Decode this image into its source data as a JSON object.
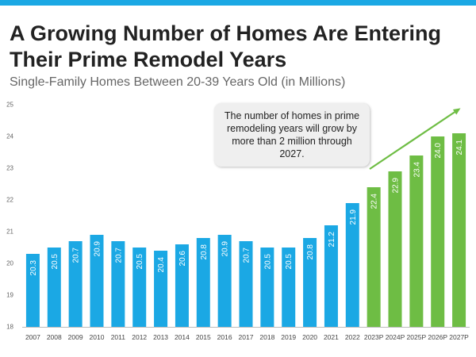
{
  "header": {
    "title": "A Growing Number of Homes Are Entering Their Prime Remodel Years",
    "subtitle": "Single-Family Homes Between 20-39 Years Old (in Millions)"
  },
  "callout": {
    "text": "The number of homes in prime remodeling years will grow by more than 2 million through 2027."
  },
  "colors": {
    "actual": "#1ba8e4",
    "projected": "#6ebd44",
    "accent_bar": "#1ba8e4",
    "arrow": "#6ebd44"
  },
  "chart_data": {
    "type": "bar",
    "title": "A Growing Number of Homes Are Entering Their Prime Remodel Years",
    "subtitle": "Single-Family Homes Between 20-39 Years Old (in Millions)",
    "xlabel": "",
    "ylabel": "",
    "ylim": [
      18,
      25
    ],
    "yticks": [
      18,
      19,
      20,
      21,
      22,
      23,
      24,
      25
    ],
    "grid": false,
    "legend": "none",
    "categories": [
      "2007",
      "2008",
      "2009",
      "2010",
      "2011",
      "2012",
      "2013",
      "2014",
      "2015",
      "2016",
      "2017",
      "2018",
      "2019",
      "2020",
      "2021",
      "2022",
      "2023P",
      "2024P",
      "2025P",
      "2026P",
      "2027P"
    ],
    "values": [
      20.3,
      20.5,
      20.7,
      20.9,
      20.7,
      20.5,
      20.4,
      20.6,
      20.8,
      20.9,
      20.7,
      20.5,
      20.5,
      20.8,
      21.2,
      21.9,
      22.4,
      22.9,
      23.4,
      24.0,
      24.1
    ],
    "labels": [
      "20.3",
      "20.5",
      "20.7",
      "20.9",
      "20.7",
      "20.5",
      "20.4",
      "20.6",
      "20.8",
      "20.9",
      "20.7",
      "20.5",
      "20.5",
      "20.8",
      "21.2",
      "21.9",
      "22.4",
      "22.9",
      "23.4",
      "24.0",
      "24.1"
    ],
    "projected": [
      false,
      false,
      false,
      false,
      false,
      false,
      false,
      false,
      false,
      false,
      false,
      false,
      false,
      false,
      false,
      false,
      true,
      true,
      true,
      true,
      true
    ]
  }
}
